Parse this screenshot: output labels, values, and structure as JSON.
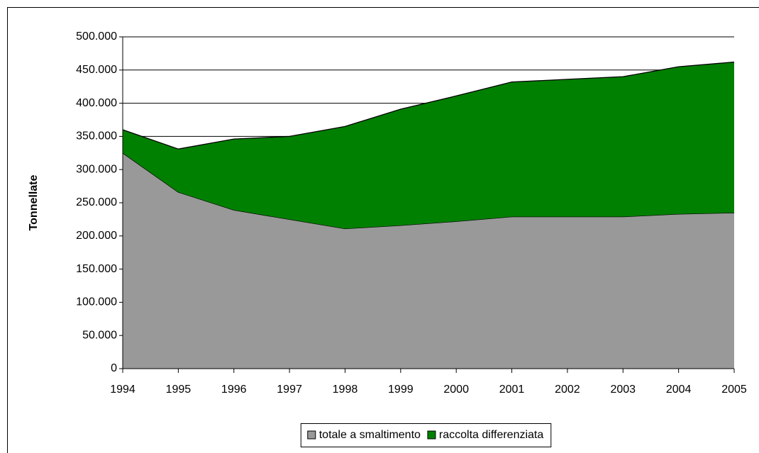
{
  "chart_data": {
    "type": "stacked_area",
    "y_label": "Tonnellate",
    "categories": [
      "1994",
      "1995",
      "1996",
      "1997",
      "1998",
      "1999",
      "2000",
      "2001",
      "2002",
      "2003",
      "2004",
      "2005"
    ],
    "series": [
      {
        "name": "totale a smaltimento",
        "color": "#999999",
        "values": [
          325000,
          266000,
          239000,
          225000,
          211000,
          216000,
          222000,
          229000,
          229000,
          229000,
          233000,
          235000
        ]
      },
      {
        "name": "raccolta differenziata",
        "color": "#008000",
        "values": [
          35000,
          65000,
          107000,
          125000,
          154000,
          175000,
          189000,
          203000,
          207000,
          211000,
          222000,
          227000
        ]
      }
    ],
    "ylim": [
      0,
      500000
    ],
    "yticks": [
      0,
      {
        "value": 50000,
        "label": "50.000"
      },
      {
        "value": 100000,
        "label": "100.000"
      },
      {
        "value": 150000,
        "label": "150.000"
      },
      {
        "value": 200000,
        "label": "200.000"
      },
      {
        "value": 250000,
        "label": "250.000"
      },
      {
        "value": 300000,
        "label": "300.000"
      },
      {
        "value": 350000,
        "label": "350.000"
      },
      {
        "value": 400000,
        "label": "400.000"
      },
      {
        "value": 450000,
        "label": "450.000"
      },
      {
        "value": 500000,
        "label": "500.000"
      }
    ],
    "grid": true,
    "legend": "bottom"
  }
}
